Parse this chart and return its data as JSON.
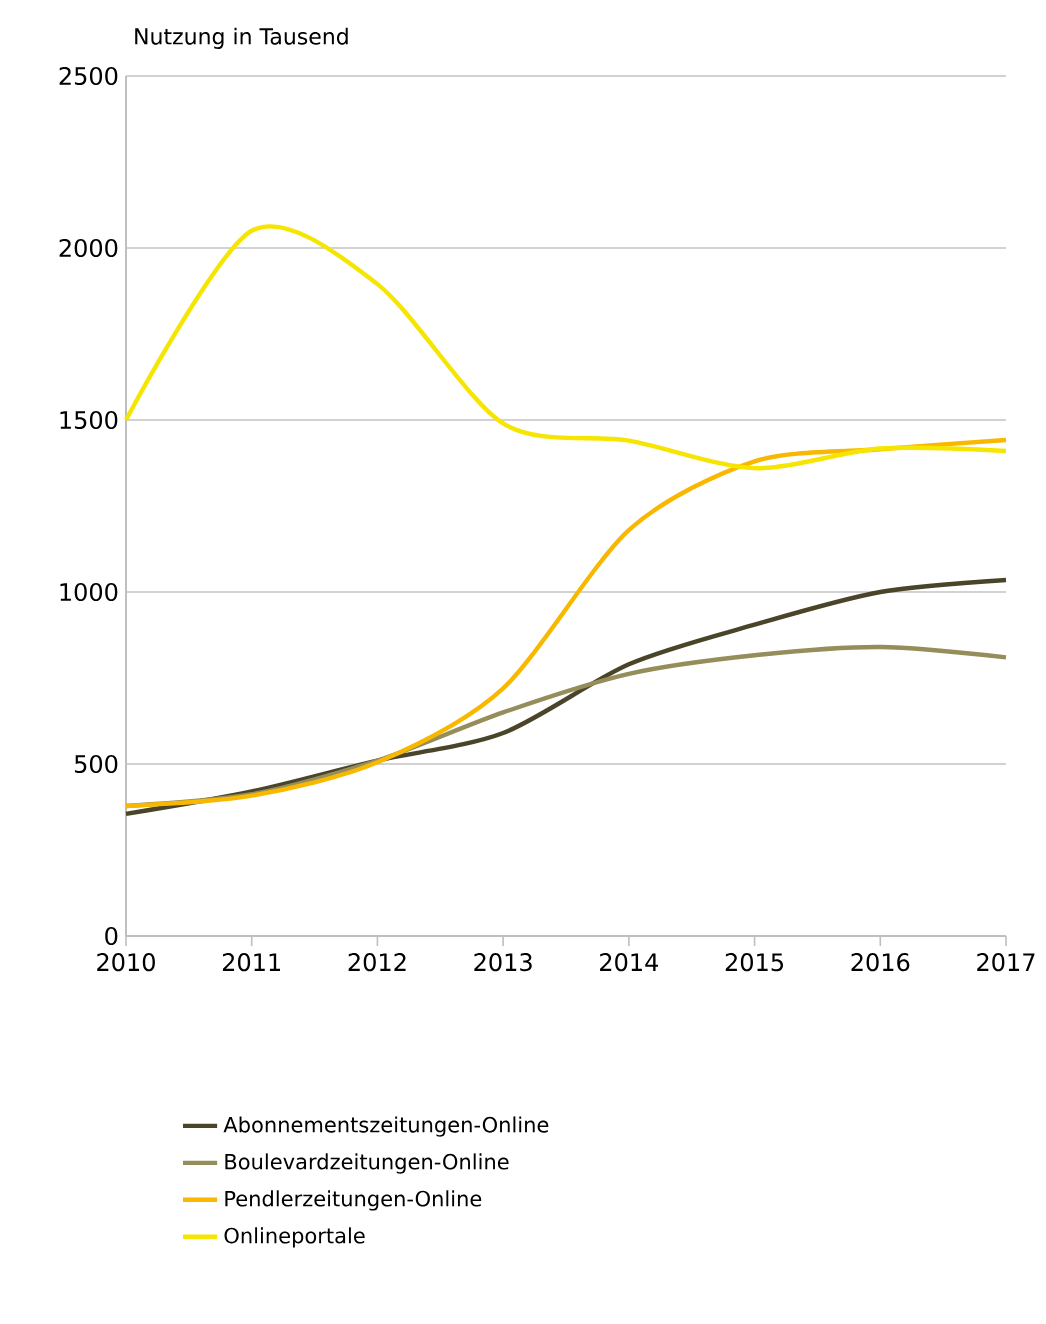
{
  "chart_data": {
    "type": "line",
    "ylabel": "Nutzung in Tausend",
    "x": [
      2010,
      2011,
      2012,
      2013,
      2014,
      2015,
      2016,
      2017
    ],
    "xlim": [
      2010,
      2017
    ],
    "xticks": [
      2010,
      2011,
      2012,
      2013,
      2014,
      2015,
      2016,
      2017
    ],
    "ylim": [
      0,
      2500
    ],
    "yticks": [
      0,
      500,
      1000,
      1500,
      2000,
      2500
    ],
    "grid": "y",
    "legend": "bottom",
    "marker": "none",
    "line_style": "solid",
    "series": [
      {
        "name": "Abonnementszeitungen-Online",
        "color": "#4a4428",
        "values": [
          355,
          420,
          510,
          590,
          790,
          905,
          1000,
          1035
        ]
      },
      {
        "name": "Boulevardzeitungen-Online",
        "color": "#958d5a",
        "values": [
          378,
          412,
          510,
          650,
          762,
          816,
          840,
          810
        ]
      },
      {
        "name": "Pendlerzeitungen-Online",
        "color": "#f9b800",
        "values": [
          378,
          408,
          505,
          720,
          1180,
          1380,
          1415,
          1442
        ]
      },
      {
        "name": "Onlineportale",
        "color": "#f5e500",
        "values": [
          1500,
          2050,
          1895,
          1490,
          1440,
          1360,
          1417,
          1410
        ]
      }
    ]
  }
}
